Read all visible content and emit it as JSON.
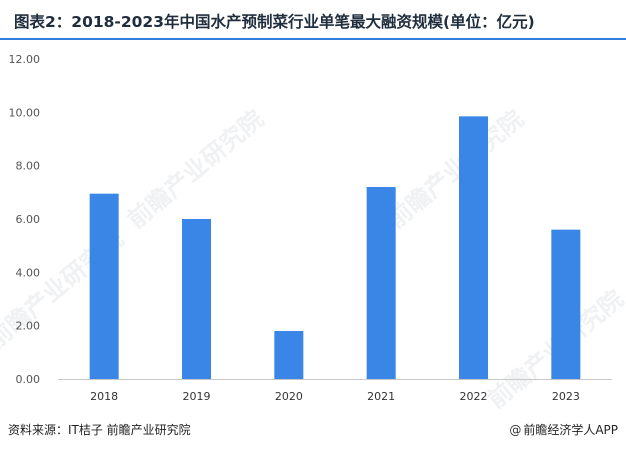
{
  "chart_title": "图表2：2018-2023年中国水产预制菜行业单笔最大融资规模(单位：亿元)",
  "watermark_text": "前瞻产业研究院",
  "source_text": "资料来源：IT桔子 前瞻产业研究院",
  "brand_mark": "@",
  "brand_text": "前瞻经济学人APP",
  "chart_data": {
    "type": "bar",
    "title": "图表2：2018-2023年中国水产预制菜行业单笔最大融资规模(单位：亿元)",
    "categories": [
      "2018",
      "2019",
      "2020",
      "2021",
      "2022",
      "2023"
    ],
    "values": [
      6.95,
      6.0,
      1.8,
      7.2,
      9.85,
      5.6
    ],
    "ylim": [
      0,
      12
    ],
    "yticks": [
      "0.00",
      "2.00",
      "4.00",
      "6.00",
      "8.00",
      "10.00",
      "12.00"
    ],
    "bar_color": "#3a86e6",
    "grid": false,
    "legend": "none"
  }
}
